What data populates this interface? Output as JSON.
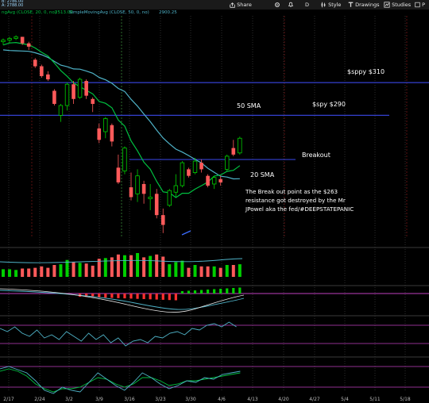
{
  "toolbar": {
    "readout_1": "B: 2786.00",
    "readout_2": "A: 2788.00",
    "study_1": "ngAvg (CLOSE, 20, 0, no)",
    "study_1_val": "2513.06",
    "study_2": "SimpleMovingAvg (CLOSE, 50, 0, no)",
    "study_2_val": "2900.25",
    "share": "Share",
    "period": "D",
    "style": "Style",
    "drawings": "Drawings",
    "studies": "Studies",
    "p_label": "P"
  },
  "annotations": {
    "sppy310": "$sppy $310",
    "spy290": "$spy $290",
    "sma50": "50 SMA",
    "breakout": "Breakout",
    "sma20": "20 SMA",
    "note": "The Break out point as the $263 resistance got destroyed by the Mr JPowel aka the fed/#DEEPSTATEPANIC"
  },
  "x_axis_labels": [
    "2/17",
    "2/24",
    "3/2",
    "3/9",
    "3/16",
    "3/23",
    "3/30",
    "4/6",
    "4/13",
    "4/20",
    "4/27",
    "5/4",
    "5/11",
    "5/18"
  ],
  "colors": {
    "up": "#00d000",
    "down": "#ff5a5a",
    "sma20": "#00c040",
    "sma50": "#4fb3c8",
    "hline": "#3440d0",
    "grid": "#2b2b2b",
    "vline": "#5a1010"
  },
  "chart_data": {
    "type": "candlestick",
    "x": [
      "2/17",
      "2/18",
      "2/19",
      "2/20",
      "2/21",
      "2/24",
      "2/25",
      "2/26",
      "2/27",
      "2/28",
      "3/2",
      "3/3",
      "3/4",
      "3/5",
      "3/6",
      "3/9",
      "3/10",
      "3/11",
      "3/12",
      "3/13",
      "3/16",
      "3/17",
      "3/18",
      "3/19",
      "3/20",
      "3/23",
      "3/24",
      "3/25",
      "3/26",
      "3/27",
      "3/30",
      "3/31",
      "4/1",
      "4/2",
      "4/3",
      "4/6",
      "4/7",
      "4/8"
    ],
    "series": [
      {
        "name": "price",
        "candles": [
          {
            "o": 335,
            "h": 337,
            "l": 333,
            "c": 336
          },
          {
            "o": 336,
            "h": 338,
            "l": 334,
            "c": 337
          },
          {
            "o": 337,
            "h": 339,
            "l": 336,
            "c": 338
          },
          {
            "o": 338,
            "h": 338,
            "l": 333,
            "c": 334
          },
          {
            "o": 334,
            "h": 335,
            "l": 330,
            "c": 332
          },
          {
            "o": 324,
            "h": 325,
            "l": 319,
            "c": 320
          },
          {
            "o": 320,
            "h": 321,
            "l": 313,
            "c": 314
          },
          {
            "o": 315,
            "h": 317,
            "l": 311,
            "c": 312
          },
          {
            "o": 305,
            "h": 306,
            "l": 296,
            "c": 297
          },
          {
            "o": 290,
            "h": 297,
            "l": 286,
            "c": 296
          },
          {
            "o": 296,
            "h": 310,
            "l": 293,
            "c": 309
          },
          {
            "o": 309,
            "h": 311,
            "l": 297,
            "c": 300
          },
          {
            "o": 301,
            "h": 313,
            "l": 300,
            "c": 312
          },
          {
            "o": 311,
            "h": 312,
            "l": 300,
            "c": 302
          },
          {
            "o": 300,
            "h": 301,
            "l": 292,
            "c": 297
          },
          {
            "o": 282,
            "h": 285,
            "l": 273,
            "c": 275
          },
          {
            "o": 280,
            "h": 289,
            "l": 276,
            "c": 288
          },
          {
            "o": 284,
            "h": 285,
            "l": 271,
            "c": 274
          },
          {
            "o": 258,
            "h": 266,
            "l": 248,
            "c": 249
          },
          {
            "o": 256,
            "h": 271,
            "l": 254,
            "c": 270
          },
          {
            "o": 246,
            "h": 255,
            "l": 238,
            "c": 240
          },
          {
            "o": 242,
            "h": 257,
            "l": 237,
            "c": 253
          },
          {
            "o": 248,
            "h": 250,
            "l": 236,
            "c": 242
          },
          {
            "o": 239,
            "h": 248,
            "l": 232,
            "c": 240
          },
          {
            "o": 242,
            "h": 245,
            "l": 227,
            "c": 229
          },
          {
            "o": 229,
            "h": 233,
            "l": 218,
            "c": 223
          },
          {
            "o": 235,
            "h": 245,
            "l": 234,
            "c": 244
          },
          {
            "o": 243,
            "h": 254,
            "l": 240,
            "c": 247
          },
          {
            "o": 247,
            "h": 262,
            "l": 246,
            "c": 261
          },
          {
            "o": 257,
            "h": 258,
            "l": 252,
            "c": 253
          },
          {
            "o": 255,
            "h": 264,
            "l": 254,
            "c": 262
          },
          {
            "o": 261,
            "h": 263,
            "l": 255,
            "c": 257
          },
          {
            "o": 253,
            "h": 254,
            "l": 246,
            "c": 247
          },
          {
            "o": 248,
            "h": 253,
            "l": 245,
            "c": 252
          },
          {
            "o": 251,
            "h": 253,
            "l": 247,
            "c": 249
          },
          {
            "o": 257,
            "h": 266,
            "l": 256,
            "c": 265
          },
          {
            "o": 270,
            "h": 275,
            "l": 265,
            "c": 266
          },
          {
            "o": 267,
            "h": 277,
            "l": 266,
            "c": 276
          }
        ]
      }
    ],
    "hlines": [
      310,
      290,
      263
    ]
  }
}
